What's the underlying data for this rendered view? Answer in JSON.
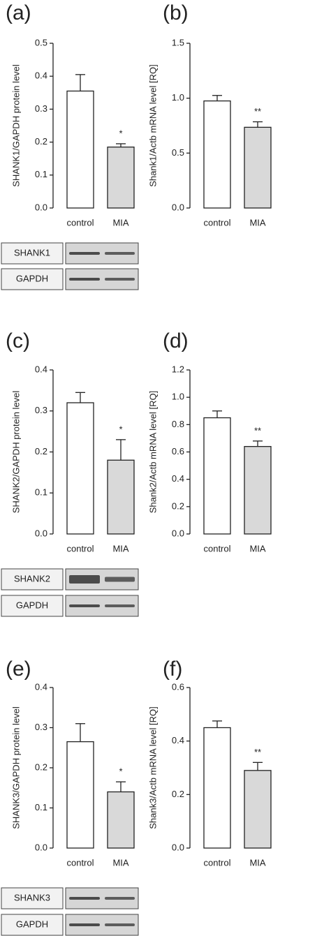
{
  "chart_data": [
    {
      "type": "bar",
      "panel_label": "(a)",
      "ylabel": "SHANK1/GAPDH protein level",
      "categories": [
        "control",
        "MIA"
      ],
      "values": [
        0.355,
        0.185
      ],
      "errors": [
        0.05,
        0.01
      ],
      "colors": [
        "#ffffff",
        "#d9d9d9"
      ],
      "annotations": [
        null,
        "*"
      ],
      "ylim": [
        0,
        0.5
      ],
      "yticks": [
        {
          "value": 0,
          "label": "0.0"
        },
        0.1,
        0.2,
        0.3,
        0.4,
        0.5
      ]
    },
    {
      "type": "bar",
      "panel_label": "(b)",
      "ylabel": "Shank1/Actb mRNA level [RQ]",
      "categories": [
        "control",
        "MIA"
      ],
      "values": [
        0.975,
        0.735
      ],
      "errors": [
        0.05,
        0.05
      ],
      "colors": [
        "#ffffff",
        "#d9d9d9"
      ],
      "annotations": [
        null,
        "**"
      ],
      "ylim": [
        0,
        1.5
      ],
      "yticks": [
        {
          "value": 0,
          "label": "0.0"
        },
        0.5,
        {
          "value": 1,
          "label": "1.0"
        },
        1.5
      ]
    },
    {
      "type": "bar",
      "panel_label": "(c)",
      "ylabel": "SHANK2/GAPDH protein level",
      "categories": [
        "control",
        "MIA"
      ],
      "values": [
        0.32,
        0.18
      ],
      "errors": [
        0.025,
        0.05
      ],
      "colors": [
        "#ffffff",
        "#d9d9d9"
      ],
      "annotations": [
        null,
        "*"
      ],
      "ylim": [
        0,
        0.4
      ],
      "yticks": [
        {
          "value": 0,
          "label": "0.0"
        },
        0.1,
        0.2,
        0.3,
        0.4
      ]
    },
    {
      "type": "bar",
      "panel_label": "(d)",
      "ylabel": "Shank2/Actb mRNA level [RQ]",
      "categories": [
        "control",
        "MIA"
      ],
      "values": [
        0.85,
        0.64
      ],
      "errors": [
        0.05,
        0.04
      ],
      "colors": [
        "#ffffff",
        "#d9d9d9"
      ],
      "annotations": [
        null,
        "**"
      ],
      "ylim": [
        0,
        1.2
      ],
      "yticks": [
        {
          "value": 0,
          "label": "0.0"
        },
        0.2,
        0.4,
        0.6,
        0.8,
        {
          "value": 1,
          "label": "1.0"
        },
        1.2
      ]
    },
    {
      "type": "bar",
      "panel_label": "(e)",
      "ylabel": "SHANK3/GAPDH protein level",
      "categories": [
        "control",
        "MIA"
      ],
      "values": [
        0.265,
        0.14
      ],
      "errors": [
        0.045,
        0.025
      ],
      "colors": [
        "#ffffff",
        "#d9d9d9"
      ],
      "annotations": [
        null,
        "*"
      ],
      "ylim": [
        0,
        0.4
      ],
      "yticks": [
        {
          "value": 0,
          "label": "0.0"
        },
        0.1,
        0.2,
        0.3,
        0.4
      ]
    },
    {
      "type": "bar",
      "panel_label": "(f)",
      "ylabel": "Shank3/Actb mRNA level [RQ]",
      "categories": [
        "control",
        "MIA"
      ],
      "values": [
        0.45,
        0.29
      ],
      "errors": [
        0.025,
        0.03
      ],
      "colors": [
        "#ffffff",
        "#d9d9d9"
      ],
      "annotations": [
        null,
        "**"
      ],
      "ylim": [
        0,
        0.6
      ],
      "yticks": [
        {
          "value": 0,
          "label": "0.0"
        },
        0.2,
        0.4,
        0.6
      ]
    }
  ],
  "blots": [
    {
      "labels": [
        "SHANK1",
        "GAPDH"
      ]
    },
    {
      "labels": [
        "SHANK2",
        "GAPDH"
      ]
    },
    {
      "labels": [
        "SHANK3",
        "GAPDH"
      ]
    }
  ]
}
